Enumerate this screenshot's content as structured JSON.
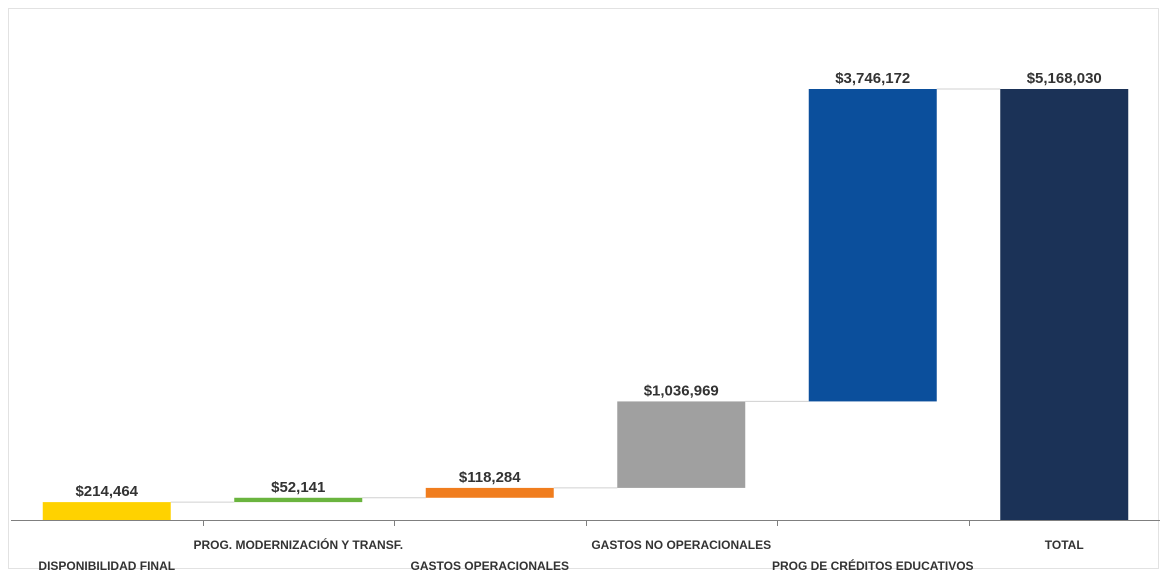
{
  "chart_data": {
    "type": "waterfall",
    "categories": [
      "DISPONIBILIDAD FINAL",
      "PROG. MODERNIZACIÓN Y TRANSF.",
      "GASTOS OPERACIONALES",
      "GASTOS NO OPERACIONALES",
      "PROG DE CRÉDITOS EDUCATIVOS",
      "TOTAL"
    ],
    "values": [
      214464,
      52141,
      118284,
      1036969,
      3746172,
      5168030
    ],
    "value_labels": [
      "$214,464",
      "$52,141",
      "$118,284",
      "$1,036,969",
      "$3,746,172",
      "$5,168,030"
    ],
    "is_total": [
      false,
      false,
      false,
      false,
      false,
      true
    ],
    "colors": [
      "#FFD200",
      "#6AB43E",
      "#F07D1E",
      "#A0A0A0",
      "#0B4F9C",
      "#1B3257"
    ],
    "ylim": [
      0,
      5168030
    ],
    "grid": false,
    "legend": "none"
  }
}
